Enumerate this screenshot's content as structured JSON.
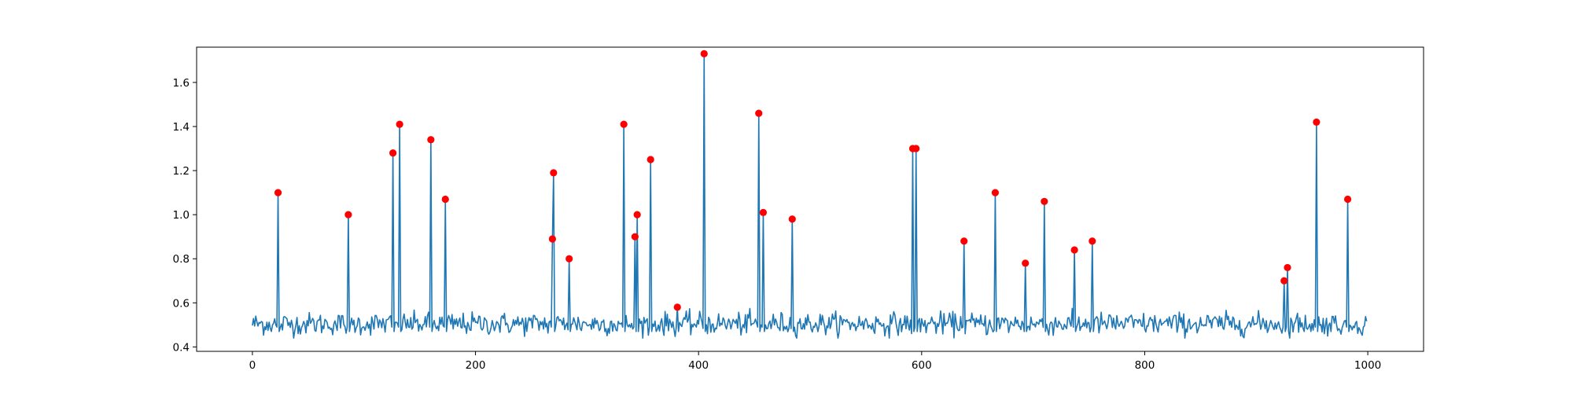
{
  "chart_data": {
    "type": "line",
    "title": "",
    "xlabel": "",
    "ylabel": "",
    "xlim": [
      -50,
      1050
    ],
    "ylim": [
      0.38,
      1.76
    ],
    "xticks": [
      0,
      200,
      400,
      600,
      800,
      1000
    ],
    "yticks": [
      0.4,
      0.6,
      0.8,
      1.0,
      1.2,
      1.4,
      1.6
    ],
    "xtick_labels": [
      "0",
      "200",
      "400",
      "600",
      "800",
      "1000"
    ],
    "ytick_labels": [
      "0.4",
      "0.6",
      "0.8",
      "1.0",
      "1.2",
      "1.4",
      "1.6"
    ],
    "grid": false,
    "legend": "none",
    "n_points": 1000,
    "baseline_mean": 0.505,
    "baseline_noise": 0.025,
    "line_color": "#1f77b4",
    "marker_color": "#ff0000",
    "peaks": [
      {
        "x": 23,
        "y": 1.1
      },
      {
        "x": 86,
        "y": 1.0
      },
      {
        "x": 126,
        "y": 1.28
      },
      {
        "x": 132,
        "y": 1.41
      },
      {
        "x": 160,
        "y": 1.34
      },
      {
        "x": 173,
        "y": 1.07
      },
      {
        "x": 269,
        "y": 0.89
      },
      {
        "x": 270,
        "y": 1.19
      },
      {
        "x": 284,
        "y": 0.8
      },
      {
        "x": 333,
        "y": 1.41
      },
      {
        "x": 343,
        "y": 0.9
      },
      {
        "x": 345,
        "y": 1.0
      },
      {
        "x": 357,
        "y": 1.25
      },
      {
        "x": 381,
        "y": 0.58
      },
      {
        "x": 405,
        "y": 1.73
      },
      {
        "x": 454,
        "y": 1.46
      },
      {
        "x": 458,
        "y": 1.01
      },
      {
        "x": 484,
        "y": 0.98
      },
      {
        "x": 592,
        "y": 1.3
      },
      {
        "x": 595,
        "y": 1.3
      },
      {
        "x": 638,
        "y": 0.88
      },
      {
        "x": 666,
        "y": 1.1
      },
      {
        "x": 693,
        "y": 0.78
      },
      {
        "x": 710,
        "y": 1.06
      },
      {
        "x": 737,
        "y": 0.84
      },
      {
        "x": 753,
        "y": 0.88
      },
      {
        "x": 925,
        "y": 0.7
      },
      {
        "x": 928,
        "y": 0.76
      },
      {
        "x": 954,
        "y": 1.42
      },
      {
        "x": 982,
        "y": 1.07
      }
    ]
  }
}
